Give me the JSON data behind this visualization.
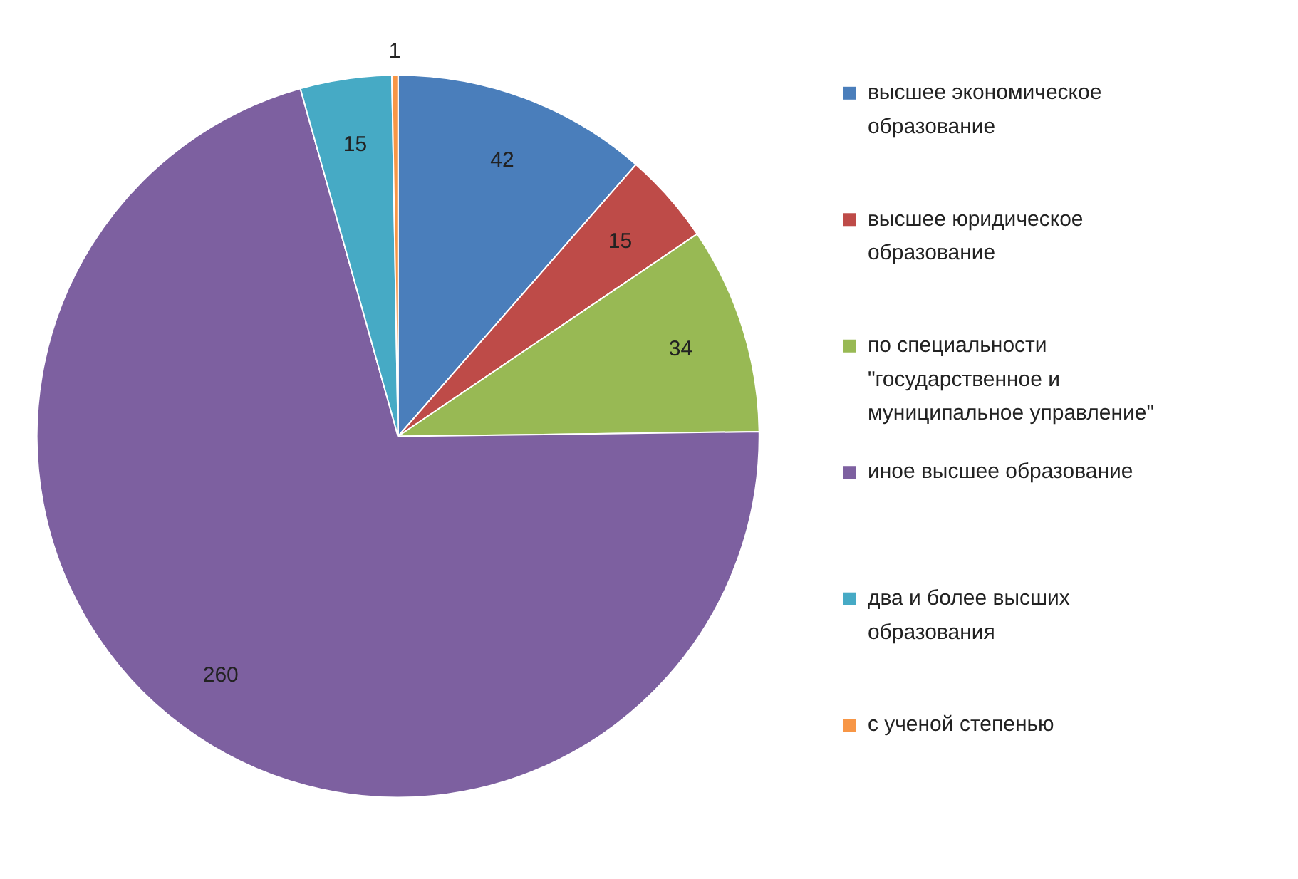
{
  "chart_data": {
    "type": "pie",
    "categories": [
      "высшее экономическое образование",
      "высшее юридическое образование",
      "по специальности \"государственное и муниципальное управление\"",
      "иное высшее образование",
      "два и более высших образования",
      "с ученой степенью"
    ],
    "values": [
      42,
      15,
      34,
      260,
      15,
      1
    ],
    "colors": [
      "#4a7ebb",
      "#be4b48",
      "#98b954",
      "#7d60a0",
      "#46aac5",
      "#f79646"
    ],
    "data_labels": true,
    "legend": "right"
  }
}
